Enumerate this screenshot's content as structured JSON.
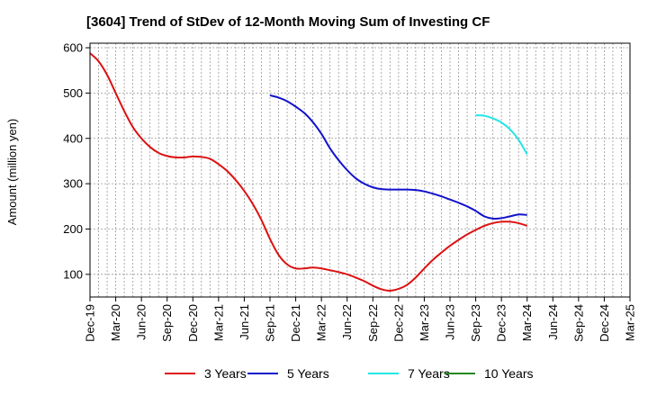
{
  "title": "[3604]  Trend of StDev of 12-Month Moving Sum of Investing CF",
  "colors": {
    "plot_border": "#000000",
    "grid": "#999999",
    "background": "#ffffff"
  },
  "chart_data": {
    "type": "line",
    "title": "[3604]  Trend of StDev of 12-Month Moving Sum of Investing CF",
    "xlabel": "",
    "ylabel": "Amount (million yen)",
    "ylim": [
      50,
      610
    ],
    "yticks": [
      100,
      200,
      300,
      400,
      500,
      600
    ],
    "xlim": [
      "2019-12",
      "2025-03"
    ],
    "xtick_labels": [
      "Dec-19",
      "Mar-20",
      "Jun-20",
      "Sep-20",
      "Dec-20",
      "Mar-21",
      "Jun-21",
      "Sep-21",
      "Dec-21",
      "Mar-22",
      "Jun-22",
      "Sep-22",
      "Dec-22",
      "Mar-23",
      "Jun-23",
      "Sep-23",
      "Dec-23",
      "Mar-24",
      "Jun-24",
      "Sep-24",
      "Dec-24",
      "Mar-25"
    ],
    "grid": true,
    "legend_position": "bottom",
    "series": [
      {
        "name": "3 Years",
        "color": "#dd1111",
        "points": [
          [
            "2019-12",
            588
          ],
          [
            "2020-01",
            570
          ],
          [
            "2020-02",
            540
          ],
          [
            "2020-03",
            500
          ],
          [
            "2020-04",
            460
          ],
          [
            "2020-05",
            425
          ],
          [
            "2020-06",
            400
          ],
          [
            "2020-07",
            381
          ],
          [
            "2020-08",
            368
          ],
          [
            "2020-09",
            361
          ],
          [
            "2020-10",
            358
          ],
          [
            "2020-11",
            358
          ],
          [
            "2020-12",
            360
          ],
          [
            "2021-01",
            359
          ],
          [
            "2021-02",
            355
          ],
          [
            "2021-03",
            343
          ],
          [
            "2021-04",
            328
          ],
          [
            "2021-05",
            308
          ],
          [
            "2021-06",
            284
          ],
          [
            "2021-07",
            255
          ],
          [
            "2021-08",
            220
          ],
          [
            "2021-09",
            178
          ],
          [
            "2021-10",
            143
          ],
          [
            "2021-11",
            122
          ],
          [
            "2021-12",
            113
          ],
          [
            "2022-01",
            113
          ],
          [
            "2022-02",
            115
          ],
          [
            "2022-03",
            113
          ],
          [
            "2022-04",
            109
          ],
          [
            "2022-05",
            105
          ],
          [
            "2022-06",
            100
          ],
          [
            "2022-07",
            93
          ],
          [
            "2022-08",
            85
          ],
          [
            "2022-09",
            75
          ],
          [
            "2022-10",
            67
          ],
          [
            "2022-11",
            64
          ],
          [
            "2022-12",
            68
          ],
          [
            "2023-01",
            77
          ],
          [
            "2023-02",
            93
          ],
          [
            "2023-03",
            113
          ],
          [
            "2023-04",
            132
          ],
          [
            "2023-05",
            148
          ],
          [
            "2023-06",
            163
          ],
          [
            "2023-07",
            176
          ],
          [
            "2023-08",
            188
          ],
          [
            "2023-09",
            198
          ],
          [
            "2023-10",
            207
          ],
          [
            "2023-11",
            213
          ],
          [
            "2023-12",
            216
          ],
          [
            "2024-01",
            216
          ],
          [
            "2024-02",
            213
          ],
          [
            "2024-03",
            207
          ]
        ]
      },
      {
        "name": "5 Years",
        "color": "#1111cc",
        "points": [
          [
            "2021-09",
            495
          ],
          [
            "2021-10",
            490
          ],
          [
            "2021-11",
            482
          ],
          [
            "2021-12",
            470
          ],
          [
            "2022-01",
            456
          ],
          [
            "2022-02",
            436
          ],
          [
            "2022-03",
            410
          ],
          [
            "2022-04",
            378
          ],
          [
            "2022-05",
            352
          ],
          [
            "2022-06",
            330
          ],
          [
            "2022-07",
            312
          ],
          [
            "2022-08",
            300
          ],
          [
            "2022-09",
            292
          ],
          [
            "2022-10",
            288
          ],
          [
            "2022-11",
            287
          ],
          [
            "2022-12",
            287
          ],
          [
            "2023-01",
            287
          ],
          [
            "2023-02",
            286
          ],
          [
            "2023-03",
            283
          ],
          [
            "2023-04",
            278
          ],
          [
            "2023-05",
            272
          ],
          [
            "2023-06",
            265
          ],
          [
            "2023-07",
            258
          ],
          [
            "2023-08",
            250
          ],
          [
            "2023-09",
            240
          ],
          [
            "2023-10",
            228
          ],
          [
            "2023-11",
            223
          ],
          [
            "2023-12",
            224
          ],
          [
            "2024-01",
            228
          ],
          [
            "2024-02",
            232
          ],
          [
            "2024-03",
            231
          ]
        ]
      },
      {
        "name": "7 Years",
        "color": "#22e6e6",
        "points": [
          [
            "2023-09",
            451
          ],
          [
            "2023-10",
            450
          ],
          [
            "2023-11",
            444
          ],
          [
            "2023-12",
            435
          ],
          [
            "2024-01",
            420
          ],
          [
            "2024-02",
            397
          ],
          [
            "2024-03",
            365
          ]
        ]
      },
      {
        "name": "10 Years",
        "color": "#228822",
        "points": []
      }
    ]
  }
}
